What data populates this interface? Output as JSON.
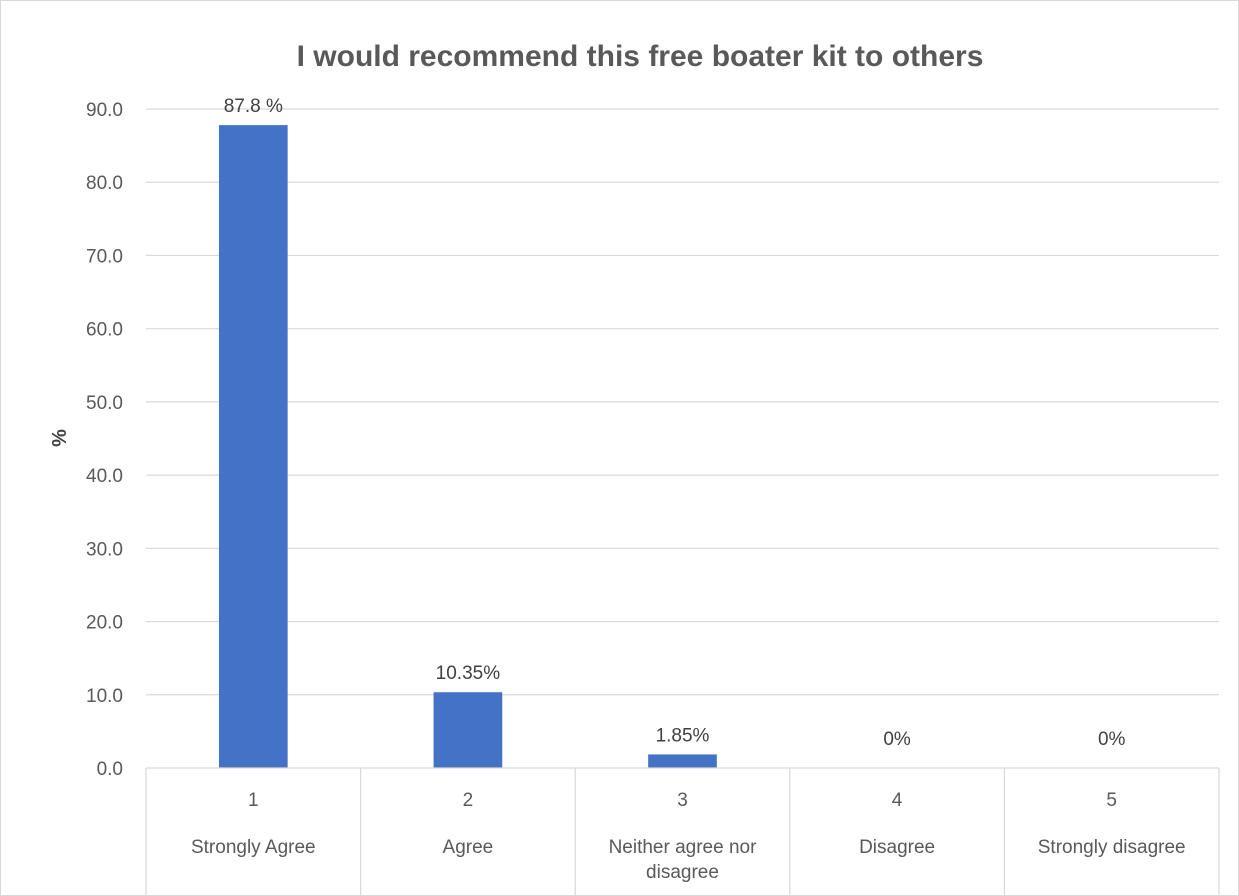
{
  "chart_data": {
    "type": "bar",
    "title": "I would recommend this free boater kit to others",
    "xlabel": "",
    "ylabel": "%",
    "ylim": [
      0,
      90
    ],
    "yticks": [
      "0.0",
      "10.0",
      "20.0",
      "30.0",
      "40.0",
      "50.0",
      "60.0",
      "70.0",
      "80.0",
      "90.0"
    ],
    "grid": true,
    "legend": "none",
    "bar_color": "#4472c4",
    "categories": [
      {
        "number": "1",
        "label_lines": [
          "Strongly Agree"
        ]
      },
      {
        "number": "2",
        "label_lines": [
          "Agree"
        ]
      },
      {
        "number": "3",
        "label_lines": [
          "Neither agree nor",
          "disagree"
        ]
      },
      {
        "number": "4",
        "label_lines": [
          "Disagree"
        ]
      },
      {
        "number": "5",
        "label_lines": [
          "Strongly disagree"
        ]
      }
    ],
    "values": [
      87.8,
      10.35,
      1.85,
      0,
      0
    ],
    "data_labels": [
      "87.8 %",
      "10.35%",
      "1.85%",
      "0%",
      "0%"
    ]
  }
}
